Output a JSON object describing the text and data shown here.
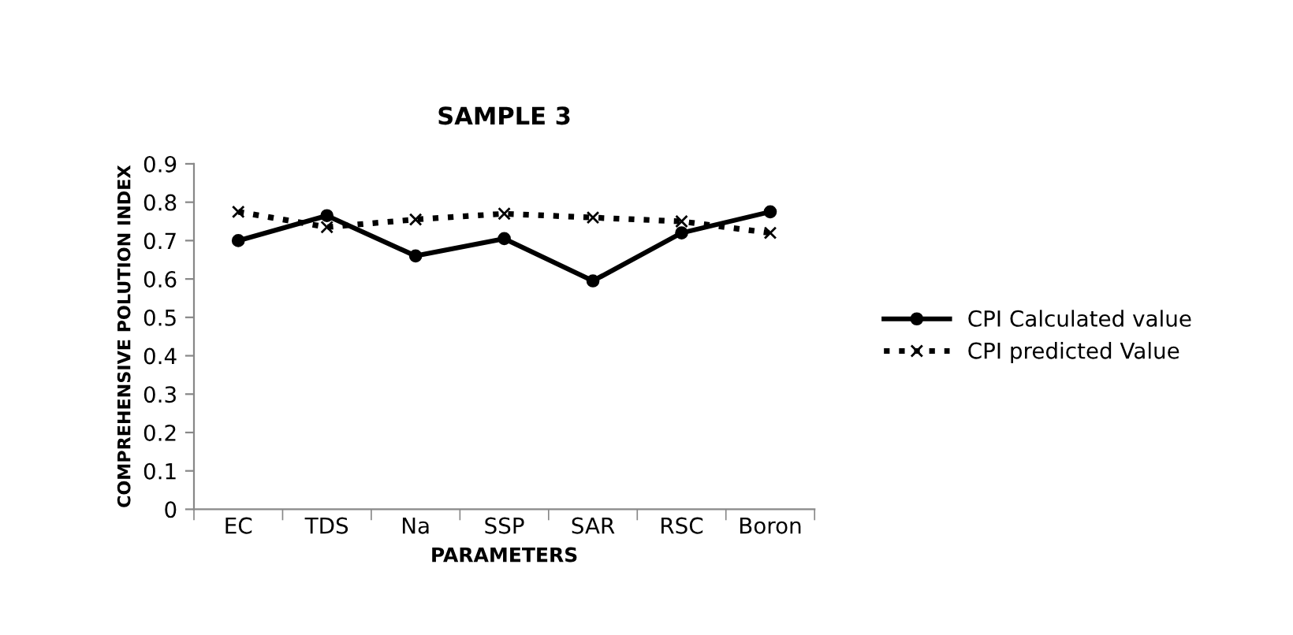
{
  "chart_data": {
    "type": "line",
    "title": "SAMPLE 3",
    "xlabel": "PARAMETERS",
    "ylabel": "COMPREHENSIVE POLUTION INDEX",
    "categories": [
      "EC",
      "TDS",
      "Na",
      "SSP",
      "SAR",
      "RSC",
      "Boron"
    ],
    "series": [
      {
        "name": "CPI Calculated value",
        "color": "#000000",
        "marker": "circle",
        "line_style": "solid",
        "values": [
          0.7,
          0.765,
          0.66,
          0.705,
          0.595,
          0.72,
          0.775
        ]
      },
      {
        "name": "CPI predicted Value",
        "color": "#000000",
        "marker": "cross",
        "line_style": "dotted",
        "values": [
          0.775,
          0.735,
          0.755,
          0.77,
          0.76,
          0.75,
          0.72
        ]
      }
    ],
    "ylim": [
      0,
      0.9
    ],
    "yticks": [
      {
        "value": 0,
        "label": "0"
      },
      0.1,
      0.2,
      0.3,
      0.4,
      0.5,
      0.6,
      0.7,
      0.8,
      0.9
    ],
    "grid": false,
    "legend": "right"
  }
}
